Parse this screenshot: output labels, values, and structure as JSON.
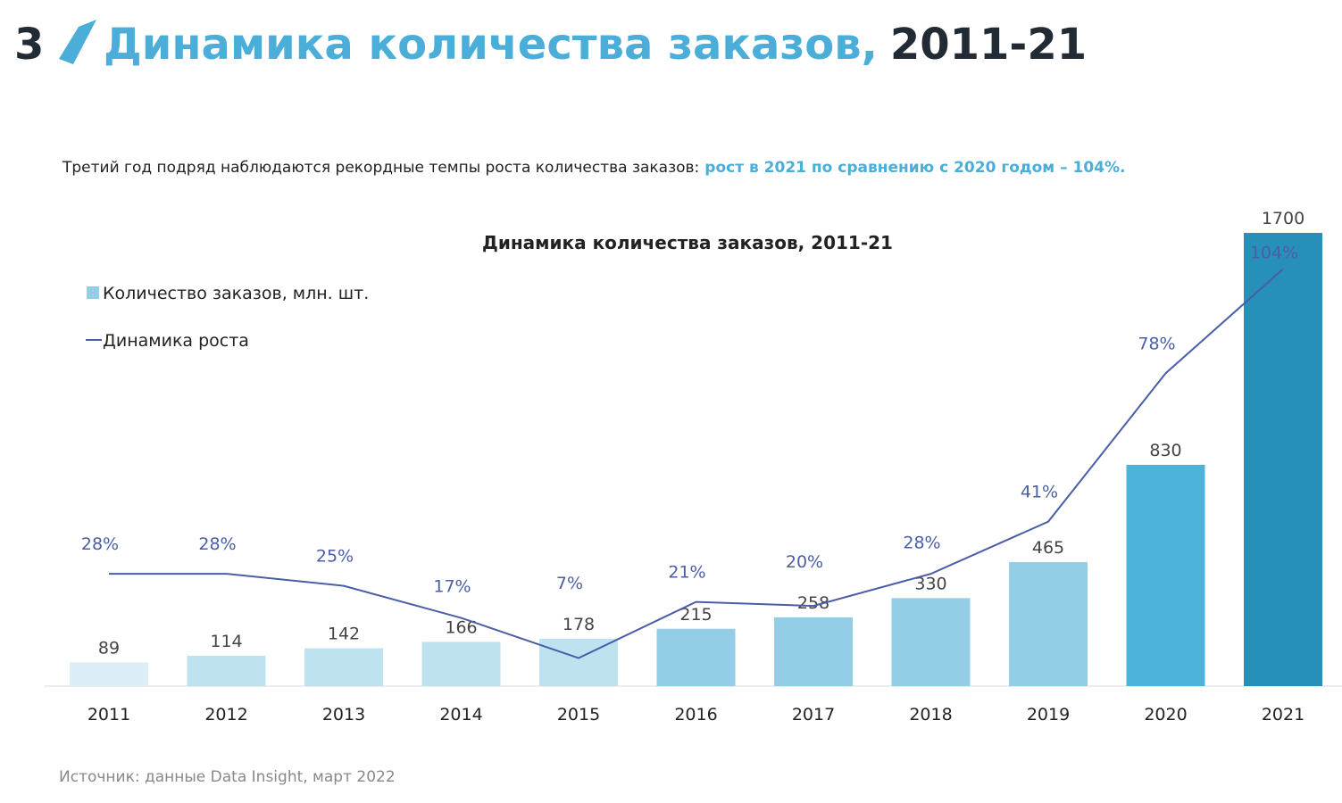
{
  "header": {
    "number": "3",
    "title_accent": "Динамика количества заказов,",
    "title_rest": "2011-21"
  },
  "lead": {
    "text": "Третий год подряд наблюдаются рекордные темпы роста количества заказов:",
    "highlight": "рост в 2021 по сравнению с 2020 годом – 104%."
  },
  "chart_data": {
    "type": "bar",
    "title": "Динамика количества заказов, 2011-21",
    "categories": [
      "2011",
      "2012",
      "2013",
      "2014",
      "2015",
      "2016",
      "2017",
      "2018",
      "2019",
      "2020",
      "2021"
    ],
    "ylim": [
      0,
      1700
    ],
    "y2lim": [
      0,
      113
    ],
    "legend": "top-left",
    "series": [
      {
        "name": "Количество заказов, млн. шт.",
        "color": "#93cde6",
        "colors": [
          "#dbeef7",
          "#bfe2f0",
          "#bfe2f0",
          "#bfe2f0",
          "#bfe2f0",
          "#93cde6",
          "#93cde6",
          "#93cde6",
          "#93cde6",
          "#4fb2da",
          "#2690b8"
        ],
        "values": [
          89,
          114,
          142,
          166,
          178,
          215,
          258,
          330,
          465,
          830,
          1700
        ]
      },
      {
        "name": "Динамика роста",
        "type": "line",
        "axis": "y2",
        "color": "#4a5ea8",
        "values": [
          28,
          28,
          25,
          17,
          7,
          21,
          20,
          28,
          41,
          78,
          104
        ],
        "value_labels": [
          "28%",
          "28%",
          "25%",
          "17%",
          "7%",
          "21%",
          "20%",
          "28%",
          "41%",
          "78%",
          "104%"
        ]
      }
    ]
  },
  "source": "Источник: данные Data Insight, март 2022"
}
